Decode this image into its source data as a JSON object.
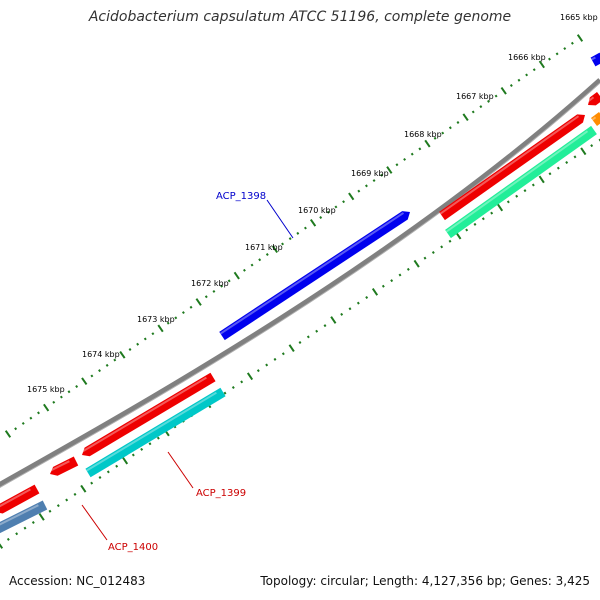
{
  "title": "Acidobacterium capsulatum ATCC 51196, complete genome",
  "footer": {
    "accession": "Accession: NC_012483",
    "summary": "Topology: circular; Length: 4,127,356 bp; Genes: 3,425"
  },
  "colors": {
    "backbone": "#808080",
    "tick": "#1f7a1f",
    "tick_label": "#000000",
    "gene_blue": "#0000ee",
    "gene_red": "#ee0000",
    "gene_cyan": "#00c8c8",
    "gene_seagreen": "#22ee99",
    "gene_steelblue": "#4f7fb0",
    "gene_orange": "#ff8c00",
    "label_blue": "#0000cc",
    "label_red": "#cc0000"
  },
  "ruler": {
    "unit": "kbp",
    "labels": [
      "1665 kbp",
      "1666 kbp",
      "1667 kbp",
      "1668 kbp",
      "1669 kbp",
      "1670 kbp",
      "1671 kbp",
      "1672 kbp",
      "1673 kbp",
      "1674 kbp",
      "1675 kbp"
    ]
  },
  "gene_labels": [
    {
      "name": "ACP_1398",
      "color": "label_blue"
    },
    {
      "name": "ACP_1399",
      "color": "label_red"
    },
    {
      "name": "ACP_1400",
      "color": "label_red"
    }
  ]
}
